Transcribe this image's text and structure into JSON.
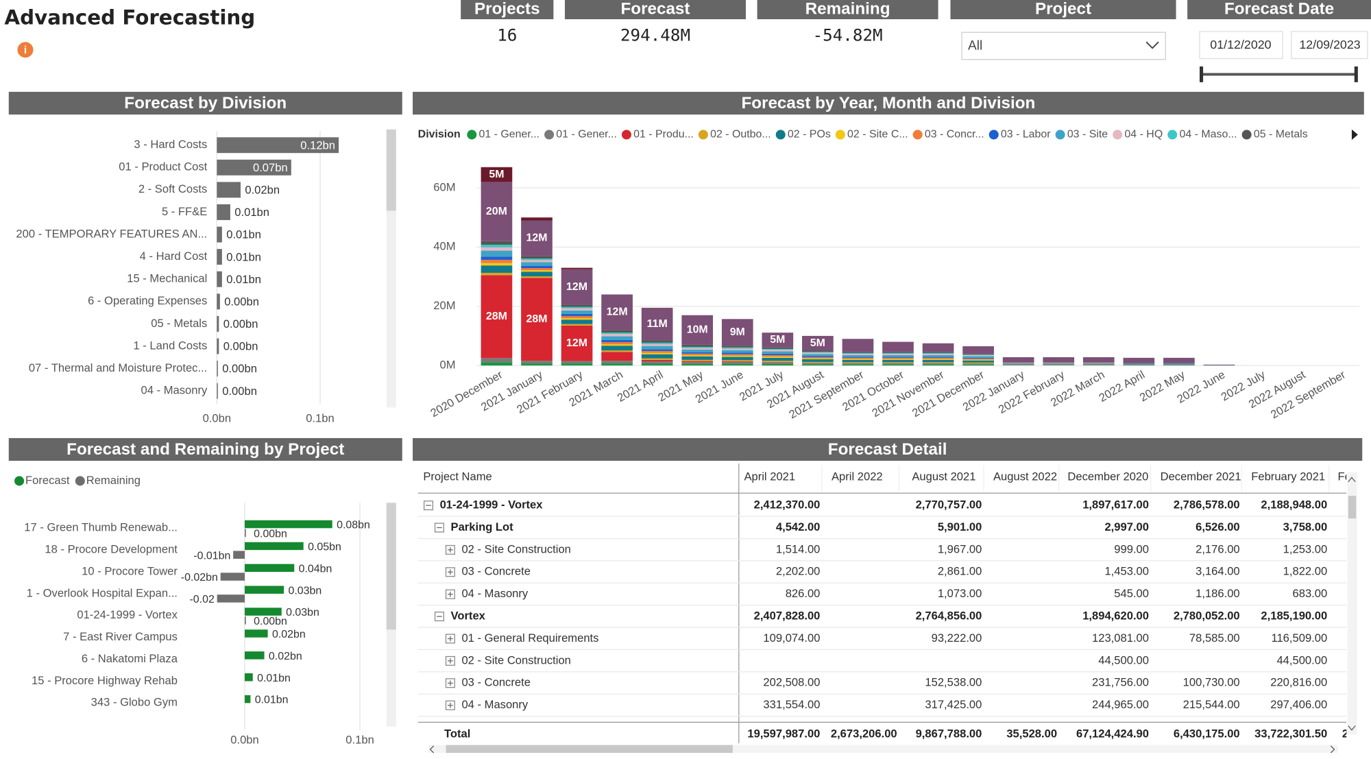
{
  "header": {
    "title": "Advanced Forecasting"
  },
  "kpis": [
    {
      "label": "Projects",
      "value": "16"
    },
    {
      "label": "Forecast",
      "value": "294.48M"
    },
    {
      "label": "Remaining",
      "value": "-54.82M"
    }
  ],
  "slicers": {
    "project": {
      "label": "Project",
      "value": "All"
    },
    "forecast_date": {
      "label": "Forecast Date",
      "start": "01/12/2020",
      "end": "12/09/2023"
    }
  },
  "chart_data": [
    {
      "type": "hbar",
      "title": "Forecast by Division",
      "categories": [
        "3 - Hard Costs",
        "01 - Product Cost",
        "2 - Soft Costs",
        "5 - FF&E",
        "200 - TEMPORARY FEATURES AN...",
        "4 - Hard Cost",
        "15 - Mechanical",
        "6 - Operating Expenses",
        "05 - Metals",
        "1 - Land Costs",
        "07 - Thermal and Moisture Protec...",
        "04 - Masonry"
      ],
      "values": [
        0.118,
        0.072,
        0.023,
        0.013,
        0.005,
        0.005,
        0.005,
        0.003,
        0.002,
        0.002,
        0.001,
        0.001
      ],
      "value_labels": [
        "0.12bn",
        "0.07bn",
        "0.02bn",
        "0.01bn",
        "0.01bn",
        "0.01bn",
        "0.01bn",
        "0.00bn",
        "0.00bn",
        "0.00bn",
        "0.00bn",
        "0.00bn"
      ],
      "color": "#6e6e6e",
      "xlim": [
        0,
        0.16
      ],
      "xticks": [
        {
          "value": 0,
          "label": "0.0bn"
        },
        {
          "value": 0.1,
          "label": "0.1bn"
        }
      ],
      "grid": true
    },
    {
      "type": "stacked_bar",
      "title": "Forecast by Year, Month and Division",
      "legend_title": "Division",
      "categories": [
        "2020 December",
        "2021 January",
        "2021 February",
        "2021 March",
        "2021 April",
        "2021 May",
        "2021 June",
        "2021 July",
        "2021 August",
        "2021 September",
        "2021 October",
        "2021 November",
        "2021 December",
        "2022 January",
        "2022 February",
        "2022 March",
        "2022 April",
        "2022 May",
        "2022 June",
        "2022 July",
        "2022 August",
        "2022 September"
      ],
      "series": [
        {
          "name": "01 - Gener...",
          "color": "#1a9641",
          "values": [
            1.1,
            0.7,
            0.7,
            0.7,
            0.6,
            0.5,
            0.5,
            0.5,
            0.4,
            0.4,
            0.4,
            0.4,
            0.3,
            0.1,
            0.1,
            0.1,
            0.1,
            0.1,
            0,
            0,
            0,
            0
          ]
        },
        {
          "name": "01 - Gener...",
          "color": "#7a7a7a",
          "values": [
            1.4,
            0.9,
            0.8,
            0.9,
            0.8,
            0.7,
            0.7,
            0.6,
            0.5,
            0.4,
            0.4,
            0.4,
            0.4,
            0.1,
            0.1,
            0.1,
            0.1,
            0.1,
            0,
            0,
            0,
            0
          ]
        },
        {
          "name": "01 - Produ...",
          "color": "#d7262f",
          "values": [
            28,
            28,
            12,
            3,
            0.5,
            0.3,
            0.2,
            0.1,
            0,
            0,
            0,
            0,
            0,
            0,
            0,
            0,
            0,
            0,
            0,
            0,
            0,
            0
          ],
          "value_labels": [
            "28M",
            "28M",
            "12M",
            null,
            null,
            null,
            null,
            null,
            null,
            null,
            null,
            null,
            null,
            null,
            null,
            null,
            null,
            null,
            null,
            null,
            null,
            null
          ]
        },
        {
          "name": "02 - Outbo...",
          "color": "#d9a520",
          "values": [
            0.8,
            0.5,
            0.5,
            0.5,
            0.5,
            0.4,
            0.4,
            0.4,
            0.3,
            0.3,
            0.3,
            0.3,
            0.3,
            0.1,
            0.1,
            0.1,
            0,
            0,
            0,
            0,
            0,
            0
          ]
        },
        {
          "name": "02 - POs",
          "color": "#137a8a",
          "values": [
            2.5,
            1.6,
            1.5,
            1.6,
            1.4,
            1.2,
            1.1,
            1,
            0.9,
            0.8,
            0.8,
            0.8,
            0.7,
            0.2,
            0.2,
            0.2,
            0.2,
            0.2,
            0.1,
            0,
            0,
            0
          ]
        },
        {
          "name": "02 - Site C...",
          "color": "#f2c811",
          "values": [
            0.8,
            0.5,
            0.5,
            0.5,
            0.5,
            0.4,
            0.4,
            0.4,
            0.3,
            0.3,
            0.3,
            0.3,
            0.3,
            0,
            0,
            0,
            0,
            0,
            0,
            0,
            0,
            0
          ]
        },
        {
          "name": "03 - Concr...",
          "color": "#f07c3a",
          "values": [
            1.1,
            0.7,
            0.7,
            0.7,
            0.6,
            0.5,
            0.5,
            0.5,
            0.4,
            0.4,
            0.4,
            0.4,
            0.3,
            0.1,
            0.1,
            0.1,
            0.1,
            0.1,
            0,
            0,
            0,
            0
          ]
        },
        {
          "name": "03 - Labor",
          "color": "#1f5fd0",
          "values": [
            1.1,
            0.7,
            0.7,
            0.7,
            0.6,
            0.5,
            0.5,
            0.5,
            0.4,
            0.3,
            0.3,
            0.3,
            0.3,
            0.1,
            0.1,
            0.1,
            0.1,
            0.1,
            0,
            0,
            0,
            0
          ]
        },
        {
          "name": "03 - Site",
          "color": "#3fa3c7",
          "values": [
            2,
            1.3,
            1.2,
            1.3,
            1.1,
            0.9,
            0.9,
            0.8,
            0.7,
            0.6,
            0.6,
            0.6,
            0.6,
            0.1,
            0.1,
            0.1,
            0.1,
            0.1,
            0,
            0,
            0,
            0
          ]
        },
        {
          "name": "04 - HQ",
          "color": "#e6b8c0",
          "values": [
            1.1,
            0.7,
            0.7,
            0.7,
            0.6,
            0.5,
            0.5,
            0.5,
            0.4,
            0.4,
            0.4,
            0.4,
            0.3,
            0.1,
            0.1,
            0.1,
            0,
            0,
            0,
            0,
            0,
            0
          ]
        },
        {
          "name": "04 - Maso...",
          "color": "#3ec6c6",
          "values": [
            0.9,
            0.5,
            0.5,
            0.5,
            0.5,
            0.4,
            0.4,
            0.3,
            0.3,
            0.3,
            0.3,
            0.3,
            0.2,
            0,
            0,
            0,
            0,
            0,
            0,
            0,
            0,
            0
          ]
        },
        {
          "name": "05 - Metals",
          "color": "#555555",
          "values": [
            1.2,
            0.9,
            0.7,
            0.9,
            0.8,
            0.7,
            0.6,
            0.5,
            0.4,
            0.3,
            0.3,
            0.3,
            0.3,
            0.1,
            0.1,
            0.1,
            0.1,
            0.1,
            0,
            0,
            0,
            0
          ]
        },
        {
          "color": "#7b4f76",
          "values": [
            20,
            12,
            12,
            12,
            11,
            10,
            9,
            5,
            5,
            4.5,
            3.5,
            3,
            2.5,
            1.8,
            1.8,
            1.8,
            1.8,
            1.8,
            0.2,
            0,
            0,
            0
          ],
          "value_labels": [
            "20M",
            "12M",
            "12M",
            "12M",
            "11M",
            "10M",
            "9M",
            "5M",
            "5M",
            null,
            null,
            null,
            null,
            null,
            null,
            null,
            null,
            null,
            null,
            null,
            null,
            null
          ]
        },
        {
          "color": "#6a1a2a",
          "values": [
            5,
            1,
            0.5,
            0,
            0,
            0,
            0,
            0,
            0,
            0,
            0,
            0,
            0,
            0,
            0,
            0,
            0,
            0,
            0,
            0,
            0,
            0
          ],
          "value_labels": [
            "5M",
            null,
            null,
            null,
            null,
            null,
            null,
            null,
            null,
            null,
            null,
            null,
            null,
            null,
            null,
            null,
            null,
            null,
            null,
            null,
            null,
            null
          ]
        }
      ],
      "ylim": [
        0,
        70
      ],
      "yticks": [
        {
          "value": 0,
          "label": "0M"
        },
        {
          "value": 20,
          "label": "20M"
        },
        {
          "value": 40,
          "label": "40M"
        },
        {
          "value": 60,
          "label": "60M"
        }
      ],
      "grid": true
    },
    {
      "type": "grouped_hbar",
      "title": "Forecast and Remaining by Project",
      "categories": [
        "17 - Green Thumb Renewab...",
        "18 - Procore Development",
        "10 - Procore Tower",
        "1 - Overlook Hospital Expan...",
        "01-24-1999 - Vortex",
        "7 - East River Campus",
        "6 - Nakatomi Plaza",
        "15 - Procore Highway Rehab",
        "343 - Globo Gym"
      ],
      "series": [
        {
          "name": "Forecast",
          "color": "#15892f",
          "values": [
            0.076,
            0.051,
            0.043,
            0.034,
            0.032,
            0.02,
            0.017,
            0.007,
            0.005
          ],
          "value_labels": [
            "0.08bn",
            "0.05bn",
            "0.04bn",
            "0.03bn",
            "0.03bn",
            "0.02bn",
            "0.02bn",
            "0.01bn",
            "0.01bn"
          ]
        },
        {
          "name": "Remaining",
          "color": "#6e6e6e",
          "values": [
            0.001,
            -0.01,
            -0.021,
            -0.024,
            0.001,
            null,
            null,
            null,
            null
          ],
          "value_labels": [
            "0.00bn",
            "-0.01bn",
            "-0.02bn",
            "-0.02",
            "0.00bn",
            null,
            null,
            null,
            null
          ]
        }
      ],
      "xlim": [
        -0.05,
        0.12
      ],
      "xticks": [
        {
          "value": 0,
          "label": "0.0bn"
        },
        {
          "value": 0.1,
          "label": "0.1bn"
        }
      ],
      "grid": true
    }
  ],
  "table": {
    "title": "Forecast Detail",
    "columns": [
      "Project Name",
      "April 2021",
      "April 2022",
      "August 2021",
      "August 2022",
      "December 2020",
      "December 2021",
      "February 2021",
      "Fe"
    ],
    "rows": [
      {
        "name": "01-24-1999 - Vortex",
        "values": [
          "2,412,370.00",
          null,
          "2,770,757.00",
          null,
          "1,897,617.00",
          "2,786,578.00",
          "2,188,948.00",
          null
        ],
        "children": [
          {
            "name": "Parking Lot",
            "values": [
              "4,542.00",
              null,
              "5,901.00",
              null,
              "2,997.00",
              "6,526.00",
              "3,758.00",
              null
            ],
            "children": [
              {
                "name": "02 - Site Construction",
                "values": [
                  "1,514.00",
                  null,
                  "1,967.00",
                  null,
                  "999.00",
                  "2,176.00",
                  "1,253.00",
                  null
                ]
              },
              {
                "name": "03 - Concrete",
                "values": [
                  "2,202.00",
                  null,
                  "2,861.00",
                  null,
                  "1,453.00",
                  "3,164.00",
                  "1,822.00",
                  null
                ]
              },
              {
                "name": "04 - Masonry",
                "values": [
                  "826.00",
                  null,
                  "1,073.00",
                  null,
                  "545.00",
                  "1,186.00",
                  "683.00",
                  null
                ]
              }
            ]
          },
          {
            "name": "Vortex",
            "values": [
              "2,407,828.00",
              null,
              "2,764,856.00",
              null,
              "1,894,620.00",
              "2,780,052.00",
              "2,185,190.00",
              null
            ],
            "children": [
              {
                "name": "01 - General Requirements",
                "values": [
                  "109,074.00",
                  null,
                  "93,222.00",
                  null,
                  "123,081.00",
                  "78,585.00",
                  "116,509.00",
                  null
                ]
              },
              {
                "name": "02 - Site Construction",
                "values": [
                  null,
                  null,
                  null,
                  null,
                  "44,500.00",
                  null,
                  "44,500.00",
                  null
                ]
              },
              {
                "name": "03 - Concrete",
                "values": [
                  "202,508.00",
                  null,
                  "152,538.00",
                  null,
                  "231,756.00",
                  "100,730.00",
                  "220,816.00",
                  null
                ]
              },
              {
                "name": "04 - Masonry",
                "values": [
                  "331,554.00",
                  null,
                  "317,425.00",
                  null,
                  "244,965.00",
                  "215,544.00",
                  "297,406.00",
                  null
                ]
              }
            ]
          }
        ]
      }
    ],
    "total": {
      "name": "Total",
      "values": [
        "19,597,987.00",
        "2,673,206.00",
        "9,867,788.00",
        "35,528.00",
        "67,124,424.90",
        "6,430,175.00",
        "33,722,301.50",
        "2"
      ]
    }
  }
}
